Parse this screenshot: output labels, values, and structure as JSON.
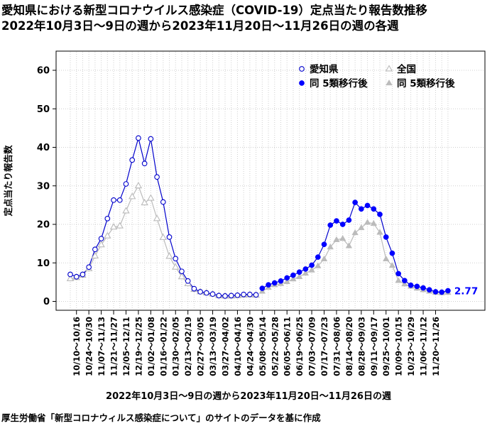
{
  "title": {
    "line1": "愛知県における新型コロナウイルス感染症（COVID-19）定点当たり報告数推移",
    "line2": "2022年10月3日～9日の週から2023年11月20日～11月26日の週の各週"
  },
  "source_note": "厚生労働省「新型コロナウィルス感染症について」のサイトのデータを基に作成",
  "colors": {
    "aichi": "#0000cc",
    "aichi_fill": "#0000ff",
    "national": "#bbbbbb",
    "grid": "#cfcfcf"
  },
  "chart_data": {
    "type": "line",
    "xlabel": "2022年10月3日～9日の週から2023年11月20日～11月26日の週",
    "ylabel": "定点当たり報告数",
    "ylim": [
      0,
      65
    ],
    "yticks": [
      0,
      10,
      20,
      30,
      40,
      50,
      60
    ],
    "grid": true,
    "legend_position": "top-right",
    "x_tick_labels": [
      "10/10～10/16",
      "10/24～10/30",
      "11/07～11/13",
      "11/21～11/27",
      "12/05～12/11",
      "12/19～12/25",
      "01/02～01/08",
      "01/16～01/22",
      "01/30～02/05",
      "02/13～02/19",
      "02/27～03/05",
      "03/13～03/19",
      "03/27～04/02",
      "04/10～04/16",
      "04/24～04/30",
      "05/08～05/14",
      "05/22～05/28",
      "06/05～06/11",
      "06/19～06/25",
      "07/03～07/09",
      "07/17～07/23",
      "07/31～08/06",
      "08/14～08/20",
      "08/28～09/03",
      "09/11～09/17",
      "09/25～10/01",
      "10/09～10/15",
      "10/23～10/29",
      "11/06～11/12",
      "11/20～11/26"
    ],
    "series": [
      {
        "name": "愛知県",
        "marker": "open-circle",
        "values": [
          7.0,
          6.4,
          7.0,
          8.9,
          13.5,
          16.3,
          21.5,
          26.3,
          26.3,
          30.5,
          36.7,
          42.4,
          35.8,
          42.2,
          32.3,
          25.8,
          16.7,
          11.1,
          7.8,
          5.3,
          3.3,
          2.5,
          2.2,
          1.9,
          1.5,
          1.4,
          1.5,
          1.6,
          1.8,
          1.8,
          1.7
        ]
      },
      {
        "name": "全国",
        "marker": "open-triangle",
        "values": [
          5.9,
          6.2,
          6.8,
          8.5,
          11.8,
          14.7,
          17.0,
          19.3,
          19.6,
          23.5,
          27.2,
          30.0,
          25.6,
          26.8,
          21.5,
          16.6,
          11.7,
          8.9,
          6.4,
          4.6,
          3.1,
          2.5,
          2.2,
          1.9,
          1.5,
          1.4,
          1.4,
          1.5,
          1.6,
          1.7,
          1.6
        ]
      },
      {
        "name": "同 5類移行後",
        "marker": "filled-circle",
        "values": [
          3.4,
          4.3,
          4.8,
          5.3,
          6.1,
          6.8,
          7.6,
          8.4,
          9.4,
          11.5,
          14.8,
          19.8,
          20.9,
          20.0,
          21.1,
          25.7,
          24.0,
          24.9,
          24.0,
          22.6,
          16.7,
          12.5,
          7.2,
          5.4,
          4.2,
          3.9,
          3.5,
          3.0,
          2.5,
          2.4,
          2.77
        ],
        "last_value_label": "2.77"
      },
      {
        "name": "同 5類移行後",
        "marker": "filled-triangle",
        "values": [
          2.6,
          3.6,
          4.3,
          4.6,
          5.1,
          5.8,
          6.4,
          7.3,
          8.1,
          9.2,
          11.0,
          14.1,
          16.0,
          16.3,
          14.4,
          17.8,
          19.1,
          20.5,
          20.2,
          17.9,
          11.0,
          9.3,
          5.4,
          4.5,
          3.9,
          3.4,
          3.0,
          2.6,
          2.3,
          2.2,
          2.3
        ]
      }
    ]
  }
}
